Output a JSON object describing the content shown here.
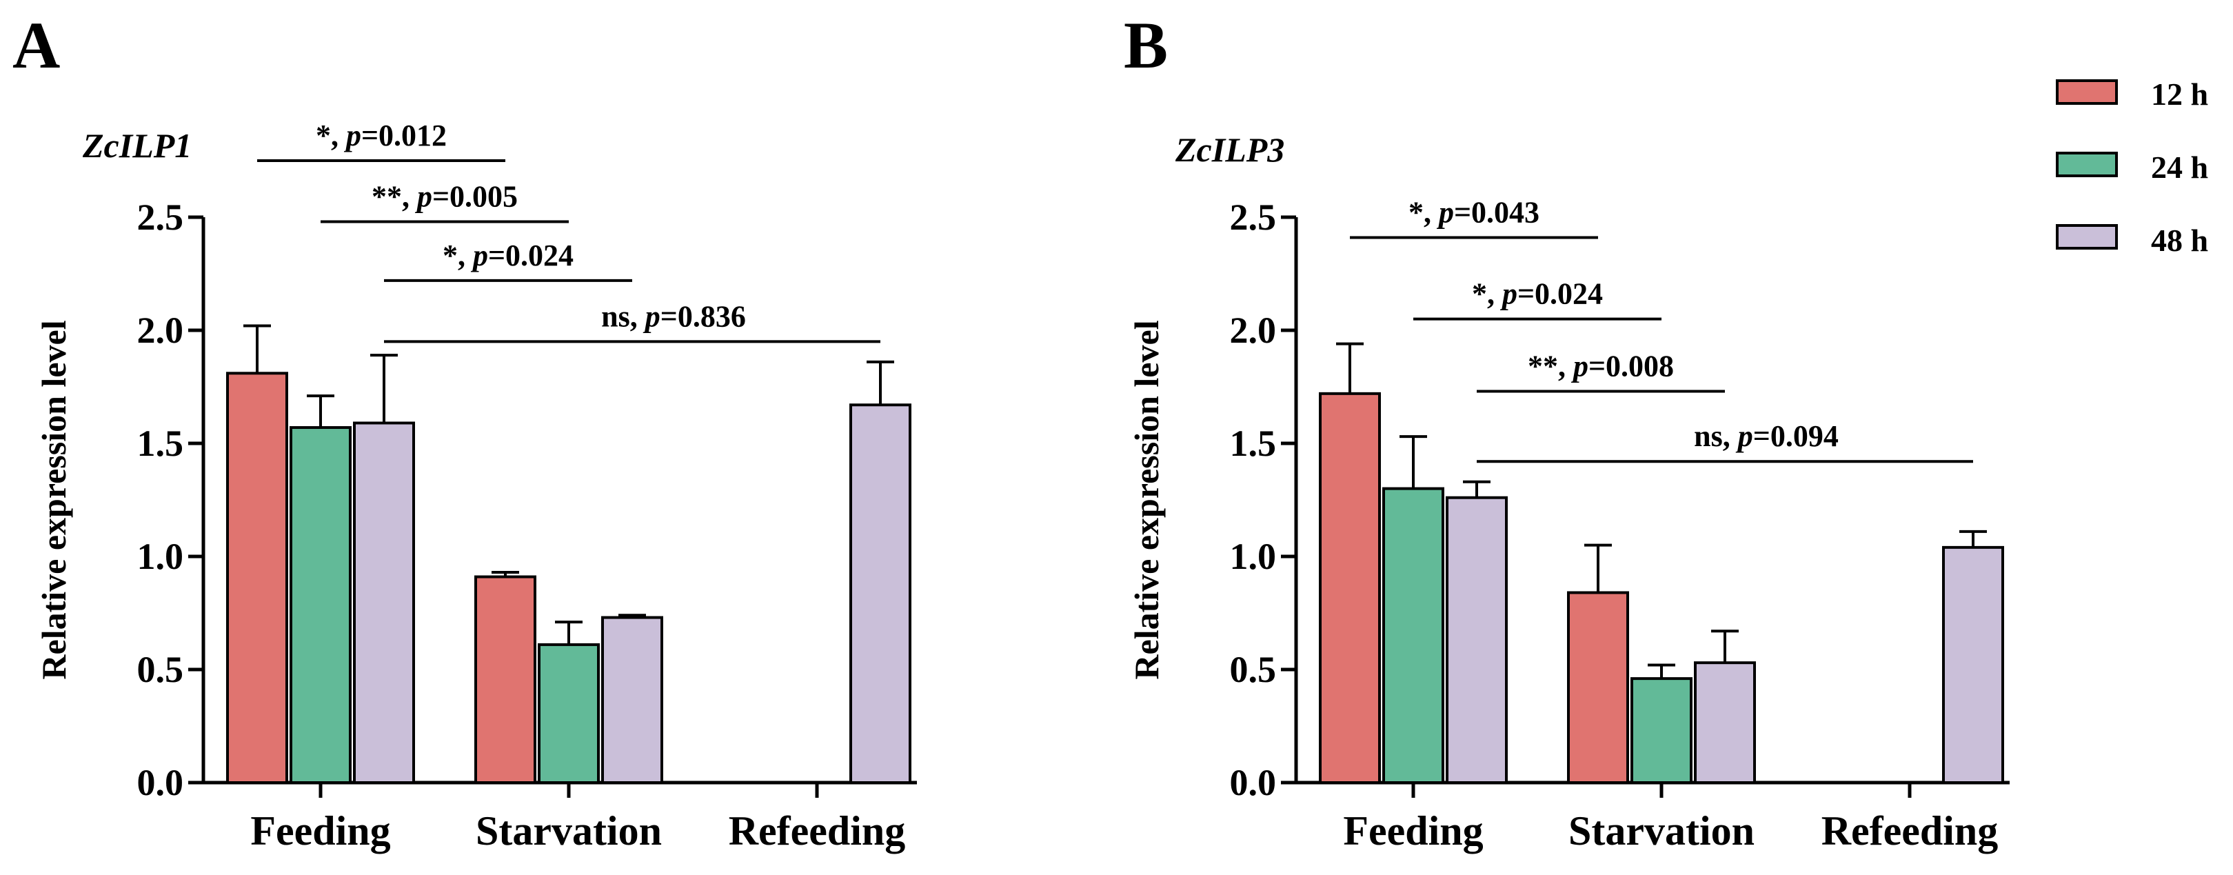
{
  "colors": {
    "12h": "#E07470",
    "24h": "#62BA98",
    "48h": "#CABFD9",
    "stroke": "#000000"
  },
  "legend": [
    {
      "key": "12h",
      "label": "12 h"
    },
    {
      "key": "24h",
      "label": "24 h"
    },
    {
      "key": "48h",
      "label": "48 h"
    }
  ],
  "chart_data": [
    {
      "type": "bar",
      "panel": "A",
      "title": "ZcILP1",
      "ylabel": "Relative expression level",
      "xlabel": "",
      "ylim": [
        0,
        2.5
      ],
      "yticks": [
        "0.0",
        "0.5",
        "1.0",
        "1.5",
        "2.0",
        "2.5"
      ],
      "categories": [
        "Feeding",
        "Starvation",
        "Refeeding"
      ],
      "series": [
        {
          "name": "12 h",
          "values": [
            1.81,
            0.91,
            null
          ],
          "errors": [
            0.21,
            0.02,
            null
          ]
        },
        {
          "name": "24 h",
          "values": [
            1.57,
            0.61,
            null
          ],
          "errors": [
            0.14,
            0.1,
            null
          ]
        },
        {
          "name": "48 h",
          "values": [
            1.59,
            0.73,
            1.67
          ],
          "errors": [
            0.3,
            0.01,
            0.19
          ]
        }
      ],
      "annotations": [
        {
          "stars": "*, ",
          "p": "p",
          "value": "=0.012",
          "y": 2.75,
          "from": [
            0,
            0
          ],
          "to": [
            1,
            0
          ]
        },
        {
          "stars": "**, ",
          "p": "p",
          "value": "=0.005",
          "y": 2.48,
          "from": [
            0,
            1
          ],
          "to": [
            1,
            1
          ]
        },
        {
          "stars": "*, ",
          "p": "p",
          "value": "=0.024",
          "y": 2.22,
          "from": [
            0,
            2
          ],
          "to": [
            1,
            2
          ]
        },
        {
          "stars": "ns, ",
          "p": "p",
          "value": "=0.836",
          "y": 1.95,
          "from": [
            0,
            2
          ],
          "to": [
            2,
            2
          ]
        }
      ]
    },
    {
      "type": "bar",
      "panel": "B",
      "title": "ZcILP3",
      "ylabel": "Relative expression level",
      "xlabel": "",
      "ylim": [
        0,
        2.5
      ],
      "yticks": [
        "0.0",
        "0.5",
        "1.0",
        "1.5",
        "2.0",
        "2.5"
      ],
      "categories": [
        "Feeding",
        "Starvation",
        "Refeeding"
      ],
      "series": [
        {
          "name": "12 h",
          "values": [
            1.72,
            0.84,
            null
          ],
          "errors": [
            0.22,
            0.21,
            null
          ]
        },
        {
          "name": "24 h",
          "values": [
            1.3,
            0.46,
            null
          ],
          "errors": [
            0.23,
            0.06,
            null
          ]
        },
        {
          "name": "48 h",
          "values": [
            1.26,
            0.53,
            1.04
          ],
          "errors": [
            0.07,
            0.14,
            0.07
          ]
        }
      ],
      "annotations": [
        {
          "stars": "*,  ",
          "p": "p",
          "value": "=0.043",
          "y": 2.41,
          "from": [
            0,
            0
          ],
          "to": [
            1,
            0
          ]
        },
        {
          "stars": "*, ",
          "p": "p",
          "value": "=0.024",
          "y": 2.05,
          "from": [
            0,
            1
          ],
          "to": [
            1,
            1
          ]
        },
        {
          "stars": "**, ",
          "p": "p",
          "value": "=0.008",
          "y": 1.73,
          "from": [
            0,
            2
          ],
          "to": [
            1,
            2
          ]
        },
        {
          "stars": "ns, ",
          "p": "p",
          "value": "=0.094",
          "y": 1.42,
          "from": [
            0,
            2
          ],
          "to": [
            2,
            2
          ]
        }
      ]
    }
  ]
}
